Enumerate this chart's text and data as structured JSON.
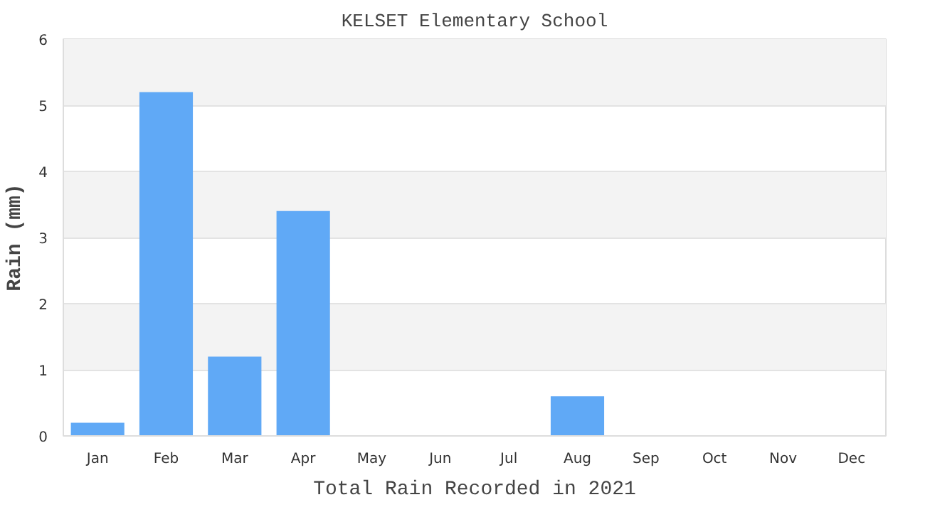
{
  "chart_data": {
    "type": "bar",
    "title": "KELSET Elementary School",
    "ylabel": "Rain (mm)",
    "xlabel": "Total Rain Recorded in 2021",
    "categories": [
      "Jan",
      "Feb",
      "Mar",
      "Apr",
      "May",
      "Jun",
      "Jul",
      "Aug",
      "Sep",
      "Oct",
      "Nov",
      "Dec"
    ],
    "values": [
      0.2,
      5.2,
      1.2,
      3.4,
      0,
      0,
      0,
      0.6,
      0,
      0,
      0,
      0
    ],
    "color": "#60a9f6",
    "ylim": [
      0,
      6
    ],
    "yticks": [
      0,
      1,
      2,
      3,
      4,
      5,
      6
    ],
    "grid": "y"
  }
}
